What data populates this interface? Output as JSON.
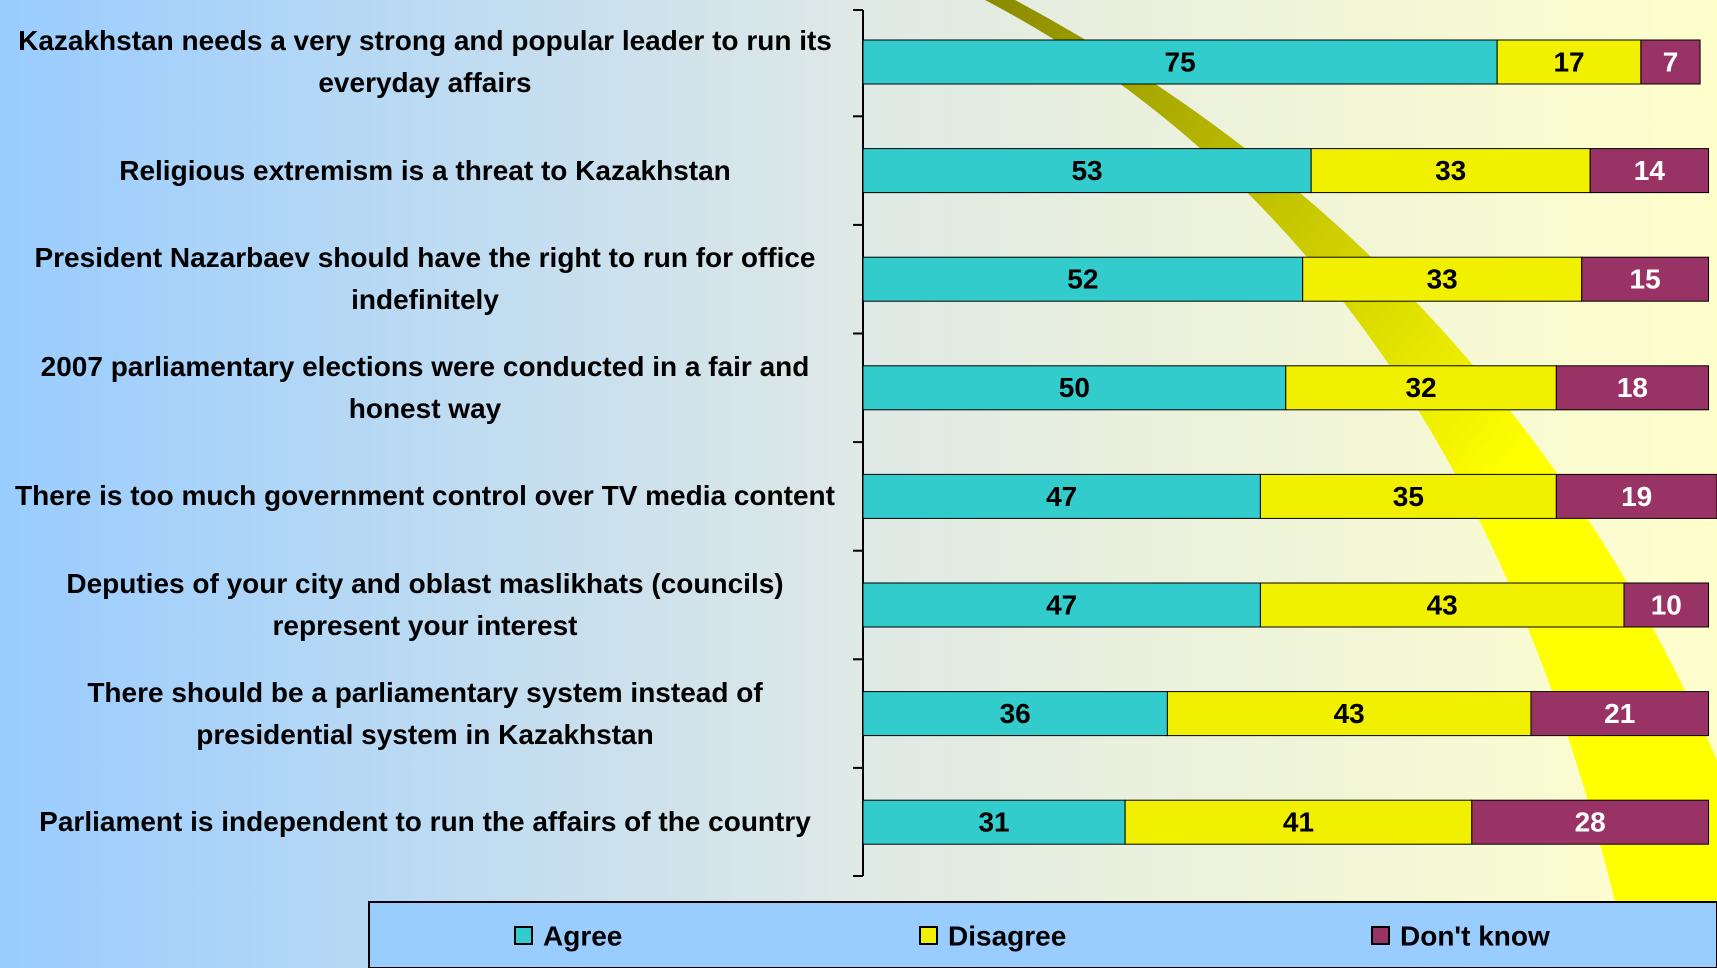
{
  "chart_data": {
    "type": "stacked-bar",
    "categories": [
      "Kazakhstan needs a very strong and popular leader to run its everyday affairs",
      "Religious extremism is a threat to Kazakhstan",
      "President Nazarbaev should have the right to run for office indefinitely",
      "2007 parliamentary elections were conducted in a fair and honest way",
      "There is too much government control over TV media content",
      "Deputies of your city and oblast maslikhats (councils) represent your interest",
      "There should be a parliamentary system instead of presidential system in Kazakhstan",
      "Parliament is independent to run the affairs of the country"
    ],
    "series": [
      {
        "name": "Agree",
        "color": "#33cccc",
        "values": [
          75,
          53,
          52,
          50,
          47,
          47,
          36,
          31
        ]
      },
      {
        "name": "Disagree",
        "color": "#f0f000",
        "values": [
          17,
          33,
          33,
          32,
          35,
          43,
          43,
          41
        ]
      },
      {
        "name": "Don't know",
        "color": "#993366",
        "values": [
          7,
          14,
          15,
          18,
          19,
          10,
          21,
          28
        ]
      }
    ]
  }
}
